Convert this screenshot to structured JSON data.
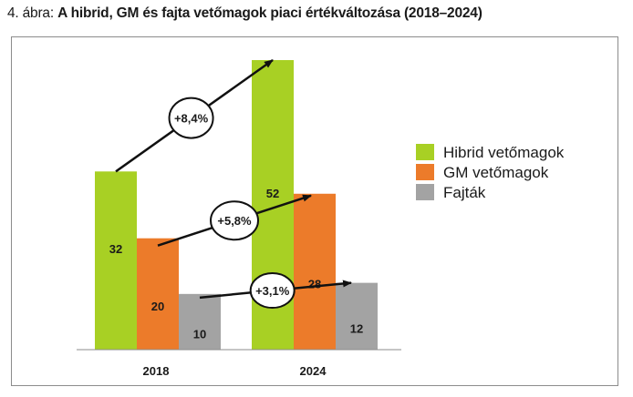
{
  "title": {
    "prefix": "4. ábra:",
    "text": "A hibrid, GM és fajta vetőmagok piaci értékváltozása (2018–2024)"
  },
  "colors": {
    "hibrid": "#a8d024",
    "gm": "#ec7b2a",
    "fajtak": "#a3a3a3"
  },
  "chart_data": {
    "type": "bar",
    "title": "A hibrid, GM és fajta vetőmagok piaci értékváltozása (2018–2024)",
    "categories": [
      "2018",
      "2024"
    ],
    "series": [
      {
        "name": "Hibrid vetőmagok",
        "values": [
          32,
          52
        ]
      },
      {
        "name": "GM vetőmagok",
        "values": [
          20,
          28
        ]
      },
      {
        "name": "Fajták",
        "values": [
          10,
          12
        ]
      }
    ],
    "annotations": [
      {
        "label": "+8,4%",
        "series": "Hibrid vetőmagok"
      },
      {
        "label": "+5,8%",
        "series": "GM vetőmagok"
      },
      {
        "label": "+3,1%",
        "series": "Fajták"
      }
    ],
    "legend": "right",
    "grid": false,
    "ylim": [
      0,
      55
    ],
    "xlabel": "",
    "ylabel": ""
  }
}
